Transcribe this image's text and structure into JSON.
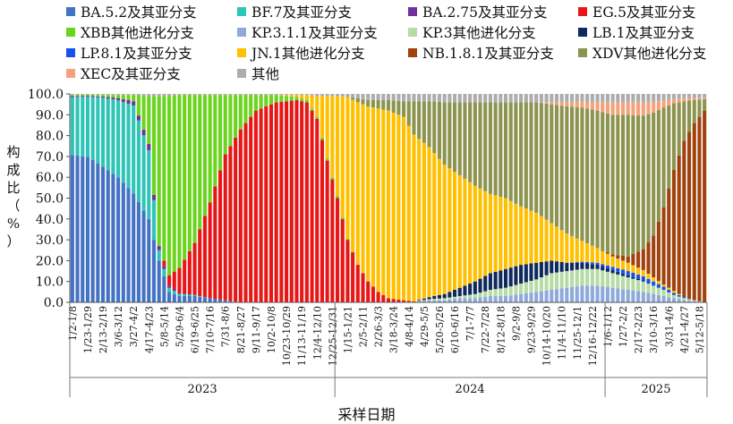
{
  "legend": [
    {
      "label": "BA.5.2及其亚分支",
      "color": "#4472C4"
    },
    {
      "label": "BF.7及其亚分支",
      "color": "#2EC4B6"
    },
    {
      "label": "BA.2.75及其亚分支",
      "color": "#7030A0"
    },
    {
      "label": "EG.5及其亚分支",
      "color": "#E81616"
    },
    {
      "label": "XBB其他进化分支",
      "color": "#6BD41E"
    },
    {
      "label": "KP.3.1.1及其亚分支",
      "color": "#8EA9DB"
    },
    {
      "label": "KP.3其他进化分支",
      "color": "#B7DBA6"
    },
    {
      "label": "LB.1及其亚分支",
      "color": "#0E2A5C"
    },
    {
      "label": "LP.8.1及其亚分支",
      "color": "#1652F0"
    },
    {
      "label": "JN.1其他进化分支",
      "color": "#FFC000"
    },
    {
      "label": "NB.1.8.1及其亚分支",
      "color": "#A0420E"
    },
    {
      "label": "XDV其他进化分支",
      "color": "#8C9450"
    },
    {
      "label": "XEC及其亚分支",
      "color": "#F4A27A"
    },
    {
      "label": "其他",
      "color": "#ADADAD"
    }
  ],
  "chart_data": {
    "type": "bar",
    "stacked": true,
    "ylabel": "构成比（%）",
    "xlabel": "采样日期",
    "ylim": [
      0,
      100
    ],
    "yticks": [
      "0.0",
      "10.0",
      "20.0",
      "30.0",
      "40.0",
      "50.0",
      "60.0",
      "70.0",
      "80.0",
      "90.0",
      "100.0"
    ],
    "grid": false,
    "legend_position": "top",
    "x_tick_labels": [
      "1/2-1/8",
      "1/23-1/29",
      "2/13-2/19",
      "3/6-3/12",
      "3/27-4/2",
      "4/17-4/23",
      "5/8-5/14",
      "5/29-6/4",
      "6/19-6/25",
      "7/10-7/16",
      "7/31-8/6",
      "8/21-8/27",
      "9/11-9/17",
      "10/2-10/8",
      "10/23-10/29",
      "11/13-11/19",
      "12/4-12/10",
      "12/25-12/31",
      "1/15-1/21",
      "2/5-2/11",
      "2/26-3/3",
      "3/18-3/24",
      "4/8-4/14",
      "4/29-5/5",
      "5/20-5/26",
      "6/10-6/16",
      "7/1-7/7",
      "7/22-7/28",
      "8/12-8/18",
      "9/2-9/8",
      "9/23-9/29",
      "10/14-10/20",
      "11/4-11/10",
      "11/25-12/1",
      "12/16-12/22",
      "1/6-1/12",
      "1/27-2/2",
      "2/17-2/23",
      "3/10-3/16",
      "3/31-4/6",
      "4/21-4/27",
      "5/12-5/18"
    ],
    "years": [
      {
        "label": "2023",
        "weeks": 52
      },
      {
        "label": "2024",
        "weeks": 53
      },
      {
        "label": "2025",
        "weeks": 20
      }
    ],
    "series_keys": [
      "BA.5.2",
      "BF.7",
      "BA.2.75",
      "EG.5",
      "XBB",
      "KP.3.1.1",
      "KP.3",
      "LB.1",
      "LP.8.1",
      "JN.1",
      "NB.1.8.1",
      "XDV",
      "XEC",
      "其他"
    ],
    "keyframes": [
      {
        "w": 0,
        "BA.5.2": 71,
        "BF.7": 28,
        "BA.2.75": 0.5,
        "XBB": 0.5,
        "其他": 0.5
      },
      {
        "w": 3,
        "BA.5.2": 70,
        "BF.7": 29,
        "BA.2.75": 0.4,
        "XBB": 0.5,
        "其他": 0.4
      },
      {
        "w": 6,
        "BA.5.2": 65,
        "BF.7": 33,
        "BA.2.75": 0.5,
        "XBB": 0.8,
        "其他": 0.5
      },
      {
        "w": 9,
        "BA.5.2": 60,
        "BF.7": 37,
        "BA.2.75": 1,
        "XBB": 1.5,
        "其他": 0.5
      },
      {
        "w": 12,
        "BA.5.2": 52,
        "BF.7": 42,
        "BA.2.75": 2,
        "XBB": 3,
        "其他": 0.5
      },
      {
        "w": 15,
        "BA.5.2": 40,
        "BF.7": 33,
        "BA.2.75": 3,
        "XBB": 23,
        "其他": 1
      },
      {
        "w": 17,
        "BA.5.2": 20,
        "BF.7": 5,
        "BA.2.75": 2,
        "XBB": 72,
        "其他": 1
      },
      {
        "w": 19,
        "BA.5.2": 5,
        "BF.7": 2,
        "BA.2.75": 1,
        "EG.5": 5,
        "XBB": 86,
        "其他": 1
      },
      {
        "w": 21,
        "BA.5.2": 3,
        "BF.7": 1,
        "BA.2.75": 0.5,
        "EG.5": 12,
        "XBB": 83,
        "其他": 0.5
      },
      {
        "w": 24,
        "BA.5.2": 3,
        "BF.7": 0.5,
        "EG.5": 25,
        "XBB": 71,
        "其他": 0.5
      },
      {
        "w": 27,
        "BA.5.2": 2,
        "EG.5": 46,
        "XBB": 51.5,
        "其他": 0.5
      },
      {
        "w": 30,
        "BA.5.2": 1,
        "EG.5": 70,
        "XBB": 28.5,
        "其他": 0.5
      },
      {
        "w": 33,
        "EG.5": 83,
        "XBB": 16.5,
        "其他": 0.5
      },
      {
        "w": 36,
        "EG.5": 92,
        "XBB": 7.5,
        "其他": 0.5
      },
      {
        "w": 40,
        "EG.5": 96,
        "XBB": 3.5,
        "其他": 0.5
      },
      {
        "w": 44,
        "EG.5": 97,
        "XBB": 1.5,
        "JN.1": 1,
        "其他": 0.5
      },
      {
        "w": 46,
        "EG.5": 96,
        "XBB": 1,
        "JN.1": 2.5,
        "其他": 0.5
      },
      {
        "w": 48,
        "EG.5": 88,
        "XBB": 1,
        "JN.1": 10,
        "其他": 1
      },
      {
        "w": 50,
        "EG.5": 68,
        "XBB": 1,
        "JN.1": 30,
        "其他": 1
      },
      {
        "w": 52,
        "EG.5": 50,
        "XBB": 1,
        "JN.1": 48,
        "其他": 1
      },
      {
        "w": 54,
        "EG.5": 30,
        "XBB": 0.5,
        "JN.1": 68,
        "其他": 1.5
      },
      {
        "w": 56,
        "EG.5": 18,
        "JN.1": 78,
        "XDV": 2,
        "其他": 2
      },
      {
        "w": 58,
        "EG.5": 10,
        "JN.1": 84,
        "XDV": 3,
        "其他": 3
      },
      {
        "w": 60,
        "EG.5": 5,
        "JN.1": 88,
        "XDV": 4,
        "其他": 3
      },
      {
        "w": 62,
        "EG.5": 2,
        "JN.1": 90,
        "XDV": 5,
        "其他": 3
      },
      {
        "w": 65,
        "EG.5": 1,
        "JN.1": 88,
        "XDV": 7.5,
        "其他": 3.5
      },
      {
        "w": 67,
        "EG.5": 0.5,
        "JN.1": 80,
        "XDV": 16,
        "其他": 3.5
      },
      {
        "w": 70,
        "KP.3.1.1": 1,
        "KP.3": 0.5,
        "LB.1": 1,
        "JN.1": 72,
        "XDV": 22,
        "其他": 3.5
      },
      {
        "w": 73,
        "KP.3.1.1": 1,
        "KP.3": 1,
        "LB.1": 2,
        "JN.1": 62,
        "XDV": 30,
        "其他": 4
      },
      {
        "w": 76,
        "KP.3.1.1": 2,
        "KP.3": 1,
        "LB.1": 4,
        "JN.1": 54,
        "XDV": 35,
        "其他": 4
      },
      {
        "w": 79,
        "KP.3.1.1": 2,
        "KP.3": 2,
        "LB.1": 6,
        "JN.1": 46,
        "XDV": 40,
        "其他": 4
      },
      {
        "w": 82,
        "KP.3.1.1": 3,
        "KP.3": 3,
        "LB.1": 8,
        "JN.1": 38,
        "XDV": 44,
        "其他": 4
      },
      {
        "w": 85,
        "KP.3.1.1": 3,
        "KP.3": 4,
        "LB.1": 9,
        "JN.1": 34,
        "XDV": 46,
        "其他": 4
      },
      {
        "w": 88,
        "KP.3.1.1": 4,
        "KP.3": 5,
        "LB.1": 9,
        "JN.1": 28,
        "XDV": 50,
        "其他": 4
      },
      {
        "w": 91,
        "KP.3.1.1": 5,
        "KP.3": 6,
        "LB.1": 8,
        "JN.1": 24,
        "XDV": 53,
        "其他": 4
      },
      {
        "w": 94,
        "KP.3.1.1": 6,
        "KP.3": 8,
        "LB.1": 6,
        "JN.1": 18,
        "XDV": 57,
        "XEC": 1,
        "其他": 4
      },
      {
        "w": 97,
        "KP.3.1.1": 7,
        "KP.3": 8,
        "LB.1": 4,
        "JN.1": 14,
        "XDV": 61,
        "XEC": 2,
        "其他": 4
      },
      {
        "w": 100,
        "KP.3.1.1": 8,
        "KP.3": 8,
        "LB.1": 3,
        "LP.8.1": 0.5,
        "JN.1": 10,
        "XDV": 64,
        "XEC": 3,
        "其他": 3.5
      },
      {
        "w": 103,
        "KP.3.1.1": 8,
        "KP.3": 8,
        "LB.1": 2,
        "LP.8.1": 1,
        "JN.1": 7,
        "XDV": 66,
        "XEC": 4,
        "其他": 4
      },
      {
        "w": 106,
        "KP.3.1.1": 7,
        "KP.3": 7,
        "LB.1": 1.5,
        "LP.8.1": 1.5,
        "JN.1": 5,
        "NB.1.8.1": 1,
        "XDV": 67,
        "XEC": 6,
        "其他": 4
      },
      {
        "w": 109,
        "KP.3.1.1": 6,
        "KP.3": 6,
        "LB.1": 1,
        "LP.8.1": 2,
        "JN.1": 4,
        "NB.1.8.1": 3,
        "XDV": 68,
        "XEC": 6,
        "其他": 4
      },
      {
        "w": 112,
        "KP.3.1.1": 5,
        "KP.3": 5,
        "LB.1": 0.5,
        "LP.8.1": 2,
        "JN.1": 3,
        "NB.1.8.1": 10,
        "XDV": 64,
        "XEC": 6.5,
        "其他": 4
      },
      {
        "w": 114,
        "KP.3.1.1": 4,
        "KP.3": 4,
        "LP.8.1": 2,
        "JN.1": 2,
        "NB.1.8.1": 20,
        "XDV": 59,
        "XEC": 5,
        "其他": 4
      },
      {
        "w": 116,
        "KP.3.1.1": 3,
        "KP.3": 3,
        "LP.8.1": 1.5,
        "JN.1": 1,
        "NB.1.8.1": 37,
        "XDV": 48,
        "XEC": 3.5,
        "其他": 3
      },
      {
        "w": 118,
        "KP.3.1.1": 2,
        "KP.3": 1.5,
        "LP.8.1": 1,
        "JN.1": 1,
        "NB.1.8.1": 58,
        "XDV": 32,
        "XEC": 2,
        "其他": 2.5
      },
      {
        "w": 120,
        "KP.3.1.1": 1,
        "KP.3": 1,
        "LP.8.1": 0.5,
        "NB.1.8.1": 75,
        "XDV": 19,
        "XEC": 1.5,
        "其他": 2
      },
      {
        "w": 122,
        "KP.3.1.1": 0.5,
        "KP.3": 0.5,
        "NB.1.8.1": 85,
        "XDV": 11,
        "XEC": 1,
        "其他": 2
      },
      {
        "w": 124,
        "NB.1.8.1": 92,
        "XDV": 5.5,
        "XEC": 0.5,
        "其他": 2
      }
    ]
  }
}
